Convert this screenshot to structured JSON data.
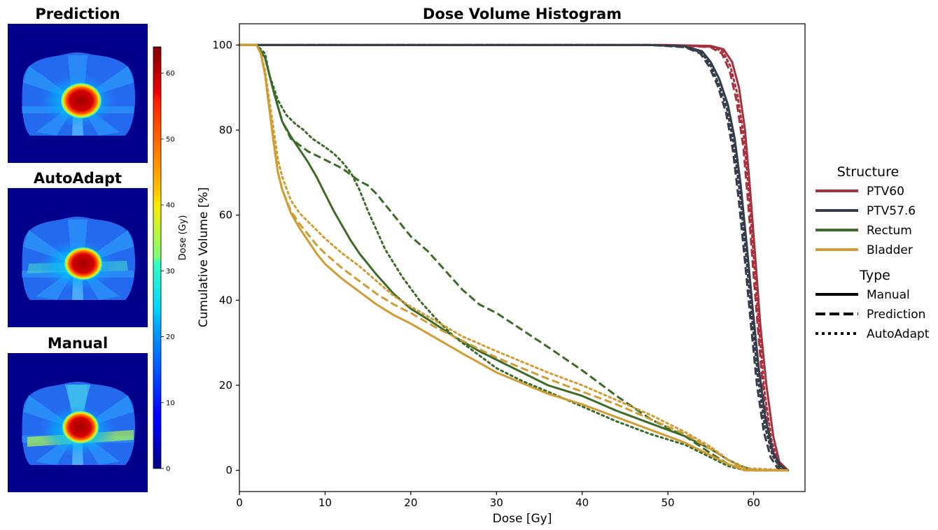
{
  "panels": {
    "prediction": {
      "title": "Prediction"
    },
    "autoadapt": {
      "title": "AutoAdapt"
    },
    "manual": {
      "title": "Manual"
    }
  },
  "colorbar": {
    "label": "Dose (Gy)",
    "range": [
      0,
      64
    ],
    "ticks": [
      0,
      10,
      20,
      30,
      40,
      50,
      60
    ],
    "colormap": "jet"
  },
  "legend": {
    "structure_title": "Structure",
    "type_title": "Type",
    "structures": [
      {
        "name": "PTV60",
        "color": "#a8313e"
      },
      {
        "name": "PTV57.6",
        "color": "#363d4a"
      },
      {
        "name": "Rectum",
        "color": "#3f6b2a"
      },
      {
        "name": "Bladder",
        "color": "#d09c33"
      }
    ],
    "types": [
      {
        "name": "Manual",
        "dash": "solid"
      },
      {
        "name": "Prediction",
        "dash": "dashed"
      },
      {
        "name": "AutoAdapt",
        "dash": "dotted"
      }
    ],
    "placement": "outside-right"
  },
  "chart_data": {
    "type": "line",
    "title": "Dose Volume Histogram",
    "xlabel": "Dose [Gy]",
    "ylabel": "Cumulative Volume [%]",
    "xlim": [
      0,
      66
    ],
    "ylim": [
      -5,
      105
    ],
    "xticks": [
      0,
      10,
      20,
      30,
      40,
      50,
      60
    ],
    "yticks": [
      0,
      20,
      40,
      60,
      80,
      100
    ],
    "grid": false,
    "series": [
      {
        "structure": "PTV60",
        "kind": "Manual",
        "color": "#a8313e",
        "dash": "solid",
        "x": [
          0,
          50,
          55,
          56.5,
          57.5,
          58.3,
          59,
          59.6,
          60.2,
          60.8,
          61.5,
          62.3,
          63,
          64
        ],
        "y": [
          100,
          100,
          99.8,
          99,
          96,
          90,
          80,
          66,
          50,
          34,
          20,
          8,
          2,
          0
        ]
      },
      {
        "structure": "PTV60",
        "kind": "Prediction",
        "color": "#a8313e",
        "dash": "dashed",
        "x": [
          0,
          50,
          55,
          56.3,
          57.2,
          58,
          58.8,
          59.4,
          60,
          60.6,
          61.2,
          62,
          62.8,
          64
        ],
        "y": [
          100,
          100,
          99.5,
          98,
          94,
          87,
          76,
          62,
          46,
          31,
          17,
          6,
          1.5,
          0
        ]
      },
      {
        "structure": "PTV60",
        "kind": "AutoAdapt",
        "color": "#a8313e",
        "dash": "dotted",
        "x": [
          0,
          50,
          55,
          56.4,
          57.3,
          58.1,
          58.9,
          59.5,
          60.1,
          60.7,
          61.3,
          62.1,
          62.9,
          64
        ],
        "y": [
          100,
          100,
          99.6,
          98.5,
          95,
          88.5,
          78,
          64,
          48,
          32,
          18,
          7,
          1.8,
          0
        ]
      },
      {
        "structure": "PTV57.6",
        "kind": "Manual",
        "color": "#363d4a",
        "dash": "solid",
        "x": [
          0,
          48,
          52,
          54,
          55,
          56,
          57,
          57.8,
          58.5,
          59.2,
          59.9,
          60.6,
          61.4,
          62.3,
          63.2,
          64
        ],
        "y": [
          100,
          100,
          99.7,
          98.5,
          96,
          92,
          86,
          78,
          67,
          53,
          38,
          24,
          12,
          4,
          1,
          0
        ]
      },
      {
        "structure": "PTV57.6",
        "kind": "Prediction",
        "color": "#363d4a",
        "dash": "dashed",
        "x": [
          0,
          48,
          52,
          53.8,
          54.8,
          55.8,
          56.8,
          57.6,
          58.3,
          59,
          59.7,
          60.4,
          61.2,
          62,
          62.8,
          64
        ],
        "y": [
          100,
          100,
          99.5,
          98,
          95,
          90.5,
          84,
          75,
          63,
          49,
          34,
          20,
          9,
          3,
          0.5,
          0
        ]
      },
      {
        "structure": "PTV57.6",
        "kind": "AutoAdapt",
        "color": "#363d4a",
        "dash": "dotted",
        "x": [
          0,
          48,
          52,
          53.9,
          54.9,
          55.9,
          56.9,
          57.7,
          58.4,
          59.1,
          59.8,
          60.5,
          61.3,
          62.2,
          63,
          64
        ],
        "y": [
          100,
          100,
          99.6,
          98.2,
          95.5,
          91,
          85,
          76.5,
          65,
          51,
          36,
          22,
          10.5,
          3.5,
          0.8,
          0
        ]
      },
      {
        "structure": "Rectum",
        "kind": "Manual",
        "color": "#3f6b2a",
        "dash": "solid",
        "x": [
          0,
          2,
          3,
          4,
          5,
          6,
          7,
          8,
          9,
          10,
          11,
          12,
          13,
          14,
          15,
          16,
          18,
          20,
          22,
          25,
          28,
          30,
          33,
          36,
          40,
          44,
          48,
          52,
          55,
          57,
          58.5,
          60,
          64
        ],
        "y": [
          100,
          100,
          97,
          89,
          82,
          78.5,
          75.5,
          72.5,
          69,
          65,
          61,
          57.5,
          54,
          51,
          48.5,
          46,
          41.5,
          38,
          35.5,
          31.5,
          28,
          26,
          23,
          20,
          17.5,
          14,
          11,
          8,
          5,
          2.5,
          1,
          0,
          0
        ]
      },
      {
        "structure": "Rectum",
        "kind": "Prediction",
        "color": "#3f6b2a",
        "dash": "dashed",
        "x": [
          0,
          2,
          3,
          4,
          5,
          6,
          7,
          8,
          9,
          10,
          11,
          12,
          13,
          14,
          15,
          16,
          18,
          20,
          22,
          24,
          26,
          28,
          30,
          33,
          36,
          40,
          44,
          48,
          52,
          55,
          57,
          59,
          64
        ],
        "y": [
          100,
          100,
          97,
          89,
          82,
          78,
          76.5,
          75,
          74,
          73,
          72,
          71,
          69.5,
          68,
          67,
          65,
          60,
          55,
          51.5,
          47,
          42.5,
          39,
          37,
          33,
          29,
          23.5,
          17.5,
          12,
          8,
          4,
          1.5,
          0,
          0
        ]
      },
      {
        "structure": "Rectum",
        "kind": "AutoAdapt",
        "color": "#3f6b2a",
        "dash": "dotted",
        "x": [
          0,
          2,
          3,
          3.5,
          4.5,
          5.5,
          6.5,
          7.5,
          8.5,
          10,
          11,
          12,
          13,
          14,
          15,
          16,
          17,
          19,
          21,
          23,
          25,
          28,
          30,
          33,
          36,
          40,
          44,
          48,
          52,
          55,
          57,
          59,
          64
        ],
        "y": [
          100,
          100,
          98,
          93,
          87,
          83.5,
          81.5,
          80,
          78,
          76,
          74.5,
          72.5,
          70,
          66,
          61,
          56.5,
          52,
          45.5,
          40,
          35.5,
          31.5,
          27,
          24,
          21,
          18.5,
          15,
          11.5,
          8.5,
          6,
          3,
          1,
          0,
          0
        ]
      },
      {
        "structure": "Bladder",
        "kind": "Manual",
        "color": "#d09c33",
        "dash": "solid",
        "x": [
          0,
          2,
          2.5,
          3,
          3.5,
          4,
          4.5,
          5,
          6,
          7,
          8,
          9,
          10,
          12,
          14,
          16,
          18,
          20,
          23,
          26,
          30,
          33,
          36,
          40,
          44,
          48,
          52,
          55,
          57,
          59,
          64
        ],
        "y": [
          100,
          100,
          98,
          93,
          85,
          77,
          70,
          66,
          60.5,
          57,
          54,
          51,
          48.5,
          45,
          42,
          39,
          36.5,
          34.5,
          31,
          27.5,
          23,
          20.5,
          18,
          15.5,
          12.5,
          9.5,
          6.5,
          3.5,
          1.5,
          0,
          0
        ]
      },
      {
        "structure": "Bladder",
        "kind": "Prediction",
        "color": "#d09c33",
        "dash": "dashed",
        "x": [
          0,
          2,
          2.5,
          3,
          3.5,
          4,
          4.5,
          5,
          6,
          7,
          8,
          9,
          10,
          12,
          14,
          16,
          18,
          20,
          23,
          26,
          30,
          33,
          36,
          40,
          44,
          48,
          52,
          55,
          57,
          59,
          64
        ],
        "y": [
          100,
          100,
          98,
          93,
          85,
          77,
          70,
          66,
          61,
          58,
          55.5,
          53,
          51,
          47.5,
          44.5,
          41.5,
          39,
          37,
          33.5,
          30.5,
          26.5,
          24,
          21.5,
          18.5,
          15.5,
          12,
          8.5,
          5,
          2.5,
          0,
          0
        ]
      },
      {
        "structure": "Bladder",
        "kind": "AutoAdapt",
        "color": "#d09c33",
        "dash": "dotted",
        "x": [
          0,
          2,
          2.5,
          3,
          3.5,
          4,
          4.5,
          5,
          6,
          7,
          8,
          9,
          10,
          12,
          14,
          16,
          18,
          20,
          23,
          26,
          30,
          33,
          36,
          40,
          44,
          48,
          52,
          55,
          57,
          59,
          64
        ],
        "y": [
          100,
          100,
          98,
          94,
          87,
          80,
          73,
          69,
          63.5,
          60.5,
          58.5,
          56.5,
          54.5,
          51,
          48,
          44.5,
          41,
          38.5,
          35,
          31.5,
          28,
          25.5,
          23,
          20,
          16.5,
          13,
          9,
          5.5,
          2.5,
          0.5,
          0
        ]
      }
    ]
  }
}
